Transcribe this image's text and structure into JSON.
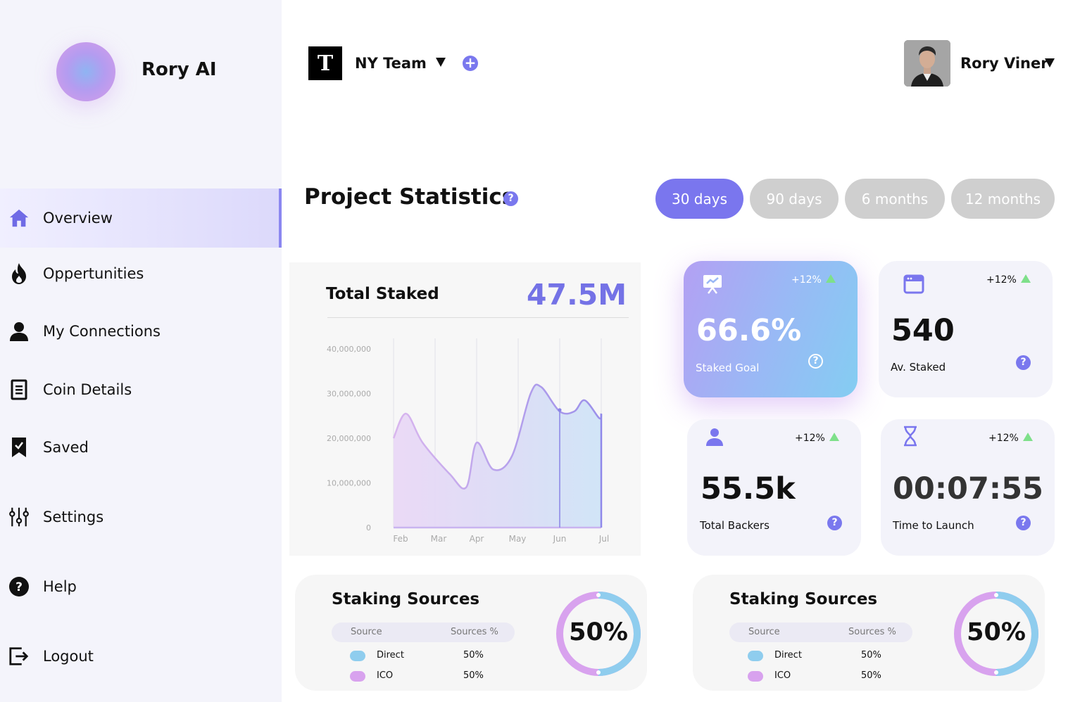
{
  "brand": {
    "name": "Rory AI"
  },
  "sidebar": {
    "items": [
      {
        "label": "Overview",
        "icon": "home-icon"
      },
      {
        "label": "Oppertunities",
        "icon": "flame-icon"
      },
      {
        "label": "My Connections",
        "icon": "user-icon"
      },
      {
        "label": "Coin Details",
        "icon": "document-icon"
      },
      {
        "label": "Saved",
        "icon": "bookmark-icon"
      },
      {
        "label": "Settings",
        "icon": "sliders-icon"
      },
      {
        "label": "Help",
        "icon": "help-icon"
      },
      {
        "label": "Logout",
        "icon": "logout-icon"
      }
    ]
  },
  "header": {
    "team_name": "NY Team",
    "team_logo_letter": "T",
    "add_label": "+",
    "user_name": "Rory Viner"
  },
  "page": {
    "title": "Project Statistics",
    "help": "?",
    "periods": [
      "30 days",
      "90 days",
      "6 months",
      "12 months"
    ],
    "active_period": "30 days"
  },
  "chart_card": {
    "title": "Total Staked",
    "total": "47.5M"
  },
  "chart_data": {
    "type": "area",
    "title": "Total Staked",
    "x": [
      "Feb",
      "Mar",
      "Apr",
      "May",
      "Jun",
      "Jul"
    ],
    "yticks": [
      "0",
      "10,000,000",
      "20,000,000",
      "30,000,000",
      "40,000,000"
    ],
    "ylim": [
      0,
      40000000
    ],
    "series": [
      {
        "name": "Total Staked",
        "points": [
          [
            0.0,
            20000000
          ],
          [
            0.3,
            25500000
          ],
          [
            0.7,
            19000000
          ],
          [
            1.35,
            12000000
          ],
          [
            1.75,
            9000000
          ],
          [
            2.0,
            19000000
          ],
          [
            2.4,
            13000000
          ],
          [
            2.85,
            16000000
          ],
          [
            3.3,
            30000000
          ],
          [
            3.55,
            31500000
          ],
          [
            4.0,
            26000000
          ],
          [
            4.35,
            26000000
          ],
          [
            4.6,
            28500000
          ],
          [
            4.95,
            24500000
          ],
          [
            5.0,
            25500000
          ]
        ]
      }
    ],
    "legend": "none",
    "grid": "vertical"
  },
  "stats": [
    {
      "delta": "+12%",
      "value": "66.6%",
      "label": "Staked Goal",
      "icon": "presentation-chart-icon"
    },
    {
      "delta": "+12%",
      "value": "540",
      "label": "Av. Staked",
      "icon": "calendar-icon"
    },
    {
      "delta": "+12%",
      "value": "55.5k",
      "label": "Total Backers",
      "icon": "user-icon"
    },
    {
      "delta": "+12%",
      "value": "00:07:55",
      "label": "Time to Launch",
      "icon": "hourglass-icon"
    }
  ],
  "sources": [
    {
      "title": "Staking Sources",
      "col_source": "Source",
      "col_pct": "Sources %",
      "rows": [
        {
          "name": "Direct",
          "pct": "50%",
          "color": "#8fcdee"
        },
        {
          "name": "ICO",
          "pct": "50%",
          "color": "#d8a2ee"
        }
      ],
      "donut_label": "50%",
      "donut_value": 0.5
    },
    {
      "title": "Staking Sources",
      "col_source": "Source",
      "col_pct": "Sources %",
      "rows": [
        {
          "name": "Direct",
          "pct": "50%",
          "color": "#8fcdee"
        },
        {
          "name": "ICO",
          "pct": "50%",
          "color": "#d8a2ee"
        }
      ],
      "donut_label": "50%",
      "donut_value": 0.5
    }
  ],
  "colors": {
    "accent": "#7a76ee",
    "tab_inactive": "#cfcfcf",
    "positive": "#7ee08a",
    "donut_blue": "#8fcdee",
    "donut_purple": "#d8a2ee"
  }
}
